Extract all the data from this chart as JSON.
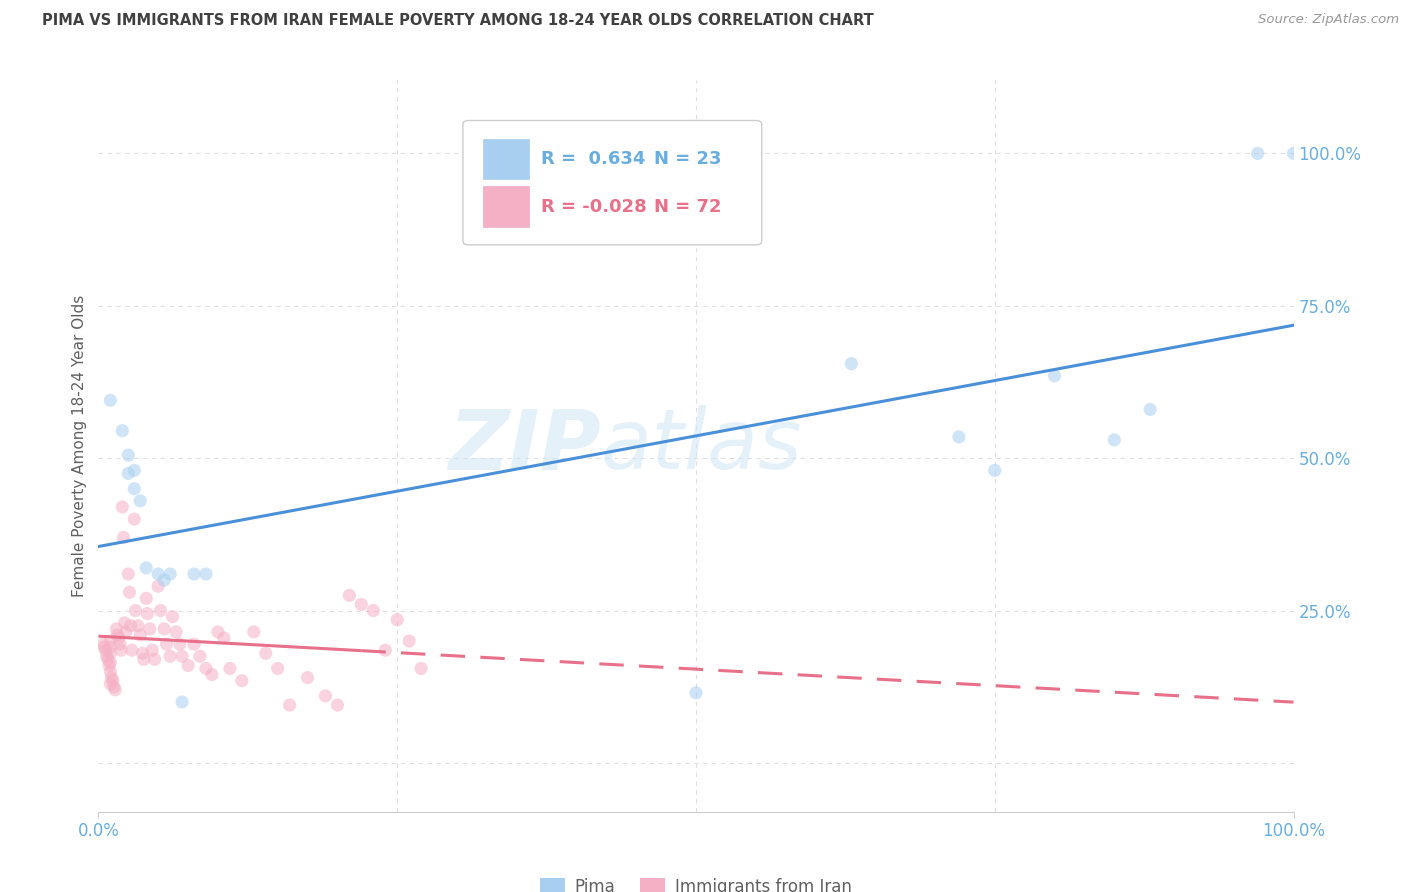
{
  "title": "PIMA VS IMMIGRANTS FROM IRAN FEMALE POVERTY AMONG 18-24 YEAR OLDS CORRELATION CHART",
  "source": "Source: ZipAtlas.com",
  "ylabel": "Female Poverty Among 18-24 Year Olds",
  "watermark_top": "ZIP",
  "watermark_bot": "atlas",
  "legend_label1": "Pima",
  "legend_label2": "Immigrants from Iran",
  "blue_r_text": "R =  0.634",
  "blue_n_text": "N = 23",
  "pink_r_text": "R = -0.028",
  "pink_n_text": "N = 72",
  "xlim": [
    0.0,
    1.0
  ],
  "ylim": [
    -0.08,
    1.12
  ],
  "blue_color": "#a8cff0",
  "pink_color": "#f5b0c5",
  "blue_line_color": "#4a90d9",
  "pink_line_color": "#e8708a",
  "title_color": "#404040",
  "source_color": "#999999",
  "axis_label_color": "#606060",
  "tick_label_color": "#6aaee0",
  "grid_color": "#e0e0e0",
  "pima_x": [
    0.01,
    0.02,
    0.025,
    0.025,
    0.03,
    0.03,
    0.035,
    0.04,
    0.05,
    0.055,
    0.06,
    0.07,
    0.08,
    0.09,
    0.5,
    0.63,
    0.72,
    0.75,
    0.8,
    0.85,
    0.88,
    0.97,
    1.0
  ],
  "pima_y": [
    0.595,
    0.545,
    0.505,
    0.475,
    0.48,
    0.45,
    0.43,
    0.32,
    0.31,
    0.3,
    0.31,
    0.1,
    0.31,
    0.31,
    0.115,
    0.655,
    0.535,
    0.48,
    0.635,
    0.53,
    0.58,
    1.0,
    1.0
  ],
  "iran_x": [
    0.004,
    0.005,
    0.006,
    0.007,
    0.008,
    0.009,
    0.01,
    0.01,
    0.01,
    0.01,
    0.01,
    0.01,
    0.011,
    0.012,
    0.013,
    0.014,
    0.015,
    0.016,
    0.017,
    0.018,
    0.019,
    0.02,
    0.021,
    0.022,
    0.023,
    0.025,
    0.026,
    0.027,
    0.028,
    0.03,
    0.031,
    0.033,
    0.035,
    0.037,
    0.038,
    0.04,
    0.041,
    0.043,
    0.045,
    0.047,
    0.05,
    0.052,
    0.055,
    0.057,
    0.06,
    0.062,
    0.065,
    0.068,
    0.07,
    0.075,
    0.08,
    0.085,
    0.09,
    0.095,
    0.1,
    0.105,
    0.11,
    0.12,
    0.13,
    0.14,
    0.15,
    0.16,
    0.175,
    0.19,
    0.2,
    0.21,
    0.22,
    0.23,
    0.24,
    0.25,
    0.26,
    0.27
  ],
  "iran_y": [
    0.195,
    0.19,
    0.185,
    0.175,
    0.17,
    0.16,
    0.2,
    0.19,
    0.18,
    0.165,
    0.15,
    0.13,
    0.14,
    0.135,
    0.125,
    0.12,
    0.22,
    0.21,
    0.205,
    0.195,
    0.185,
    0.42,
    0.37,
    0.23,
    0.215,
    0.31,
    0.28,
    0.225,
    0.185,
    0.4,
    0.25,
    0.225,
    0.21,
    0.18,
    0.17,
    0.27,
    0.245,
    0.22,
    0.185,
    0.17,
    0.29,
    0.25,
    0.22,
    0.195,
    0.175,
    0.24,
    0.215,
    0.195,
    0.175,
    0.16,
    0.195,
    0.175,
    0.155,
    0.145,
    0.215,
    0.205,
    0.155,
    0.135,
    0.215,
    0.18,
    0.155,
    0.095,
    0.14,
    0.11,
    0.095,
    0.275,
    0.26,
    0.25,
    0.185,
    0.235,
    0.2,
    0.155
  ],
  "dot_size": 90,
  "dot_alpha": 0.55,
  "line_width": 2.2
}
